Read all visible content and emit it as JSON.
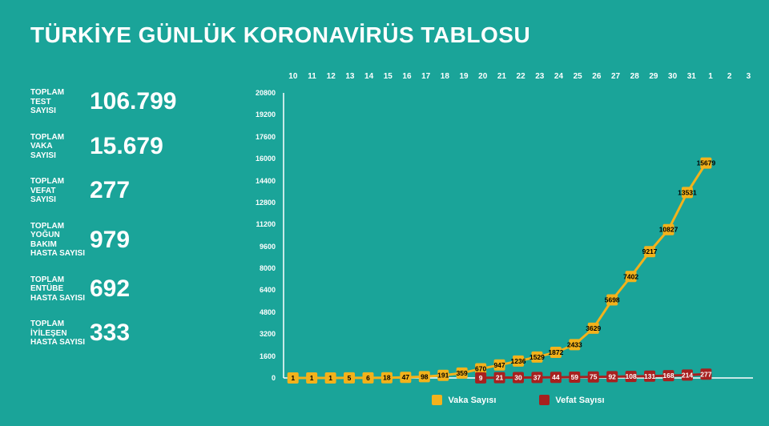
{
  "title": "TÜRKİYE GÜNLÜK KORONAVİRÜS TABLOSU",
  "background_color": "#1aa499",
  "text_color": "#ffffff",
  "stats": [
    {
      "label": "TOPLAM\nTEST\nSAYISI",
      "value": "106.799"
    },
    {
      "label": "TOPLAM\nVAKA\nSAYISI",
      "value": "15.679"
    },
    {
      "label": "TOPLAM\nVEFAT\nSAYISI",
      "value": "277"
    },
    {
      "label": "TOPLAM\nYOĞUN BAKIM\nHASTA SAYISI",
      "value": "979"
    },
    {
      "label": "TOPLAM\nENTÜBE\nHASTA SAYISI",
      "value": "692"
    },
    {
      "label": "TOPLAM\nİYİLEŞEN\nHASTA SAYISI",
      "value": "333"
    }
  ],
  "chart": {
    "type": "line",
    "x_categories": [
      "10",
      "11",
      "12",
      "13",
      "14",
      "15",
      "16",
      "17",
      "18",
      "19",
      "20",
      "21",
      "22",
      "23",
      "24",
      "25",
      "26",
      "27",
      "28",
      "29",
      "30",
      "31",
      "1",
      "2",
      "3"
    ],
    "ylim": [
      0,
      20800
    ],
    "ytick_step": 1600,
    "ytick_labels": [
      "0",
      "1600",
      "3200",
      "4800",
      "6400",
      "8000",
      "9600",
      "11200",
      "12800",
      "14400",
      "16000",
      "17600",
      "19200",
      "20800"
    ],
    "axis_color": "#ffffff",
    "series": [
      {
        "name": "Vaka Sayısı",
        "color": "#f3b21b",
        "marker": "square",
        "marker_size": 14,
        "line_width": 3,
        "label_fill": "#000000",
        "values": [
          1,
          1,
          1,
          5,
          6,
          18,
          47,
          98,
          191,
          359,
          670,
          947,
          1236,
          1529,
          1872,
          2433,
          3629,
          5698,
          7402,
          9217,
          10827,
          13531,
          15679,
          null,
          null
        ]
      },
      {
        "name": "Vefat Sayısı",
        "color": "#a7201f",
        "marker": "square",
        "marker_size": 14,
        "line_width": 3,
        "label_fill": "#ffffff",
        "values": [
          null,
          null,
          null,
          null,
          null,
          null,
          null,
          null,
          null,
          null,
          9,
          21,
          30,
          37,
          44,
          59,
          75,
          92,
          108,
          131,
          168,
          214,
          277,
          null,
          null
        ]
      }
    ]
  },
  "legend": {
    "items": [
      {
        "label": "Vaka Sayısı",
        "color": "#f3b21b"
      },
      {
        "label": "Vefat Sayısı",
        "color": "#a7201f"
      }
    ]
  }
}
